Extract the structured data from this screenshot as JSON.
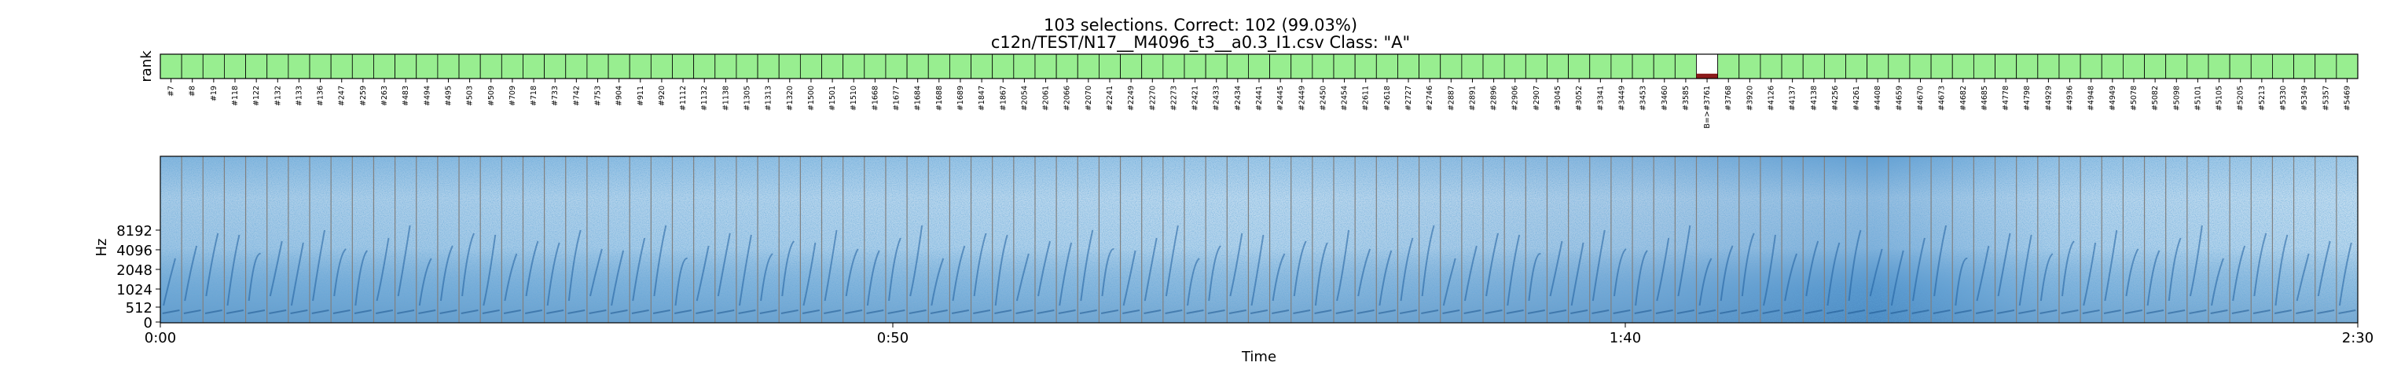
{
  "title_line1": "103 selections.  Correct: 102 (99.03%)",
  "title_line2": "c12n/TEST/N17__M4096_t3__a0.3_I1.csv  Class: \"A\"",
  "colors": {
    "correct": "#98ee90",
    "wrong": "#ffffff",
    "wrong_bar": "#8b1a1a",
    "border": "#000000",
    "divider": "#808080"
  },
  "chart_data": [
    {
      "type": "bar",
      "ylabel": "rank",
      "correct_count": 102,
      "total": 103,
      "categories": [
        "#7",
        "#8",
        "#19",
        "#118",
        "#122",
        "#132",
        "#133",
        "#136",
        "#247",
        "#259",
        "#263",
        "#483",
        "#494",
        "#495",
        "#503",
        "#509",
        "#709",
        "#718",
        "#733",
        "#742",
        "#753",
        "#904",
        "#911",
        "#920",
        "#1112",
        "#1132",
        "#1138",
        "#1305",
        "#1313",
        "#1320",
        "#1500",
        "#1501",
        "#1510",
        "#1668",
        "#1677",
        "#1684",
        "#1688",
        "#1689",
        "#1847",
        "#1867",
        "#2054",
        "#2061",
        "#2066",
        "#2070",
        "#2241",
        "#2249",
        "#2270",
        "#2273",
        "#2421",
        "#2433",
        "#2434",
        "#2441",
        "#2445",
        "#2449",
        "#2450",
        "#2454",
        "#2611",
        "#2618",
        "#2727",
        "#2746",
        "#2887",
        "#2891",
        "#2896",
        "#2906",
        "#2907",
        "#3045",
        "#3052",
        "#3341",
        "#3449",
        "#3453",
        "#3460",
        "#3585",
        "B=>#3761",
        "#3768",
        "#3920",
        "#4126",
        "#4137",
        "#4138",
        "#4256",
        "#4261",
        "#4408",
        "#4659",
        "#4670",
        "#4673",
        "#4682",
        "#4685",
        "#4778",
        "#4798",
        "#4929",
        "#4936",
        "#4948",
        "#4949",
        "#5078",
        "#5082",
        "#5098",
        "#5101",
        "#5105",
        "#5205",
        "#5213",
        "#5330",
        "#5349",
        "#5357",
        "#5469"
      ],
      "wrong_index": 72,
      "wrong_rank_fraction": 0.2
    },
    {
      "type": "heatmap",
      "xlabel": "Time",
      "ylabel": "Hz",
      "x_ticks": [
        "0:00",
        "0:50",
        "1:40",
        "2:30"
      ],
      "y_ticks": [
        "0",
        "512",
        "1024",
        "2048",
        "4096",
        "8192"
      ],
      "segments": 103
    }
  ]
}
